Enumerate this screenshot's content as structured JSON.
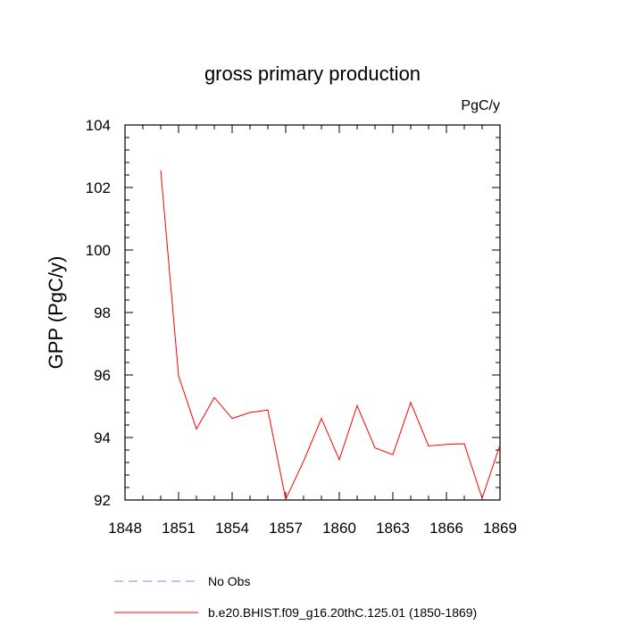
{
  "chart_data": {
    "type": "line",
    "title": "gross primary production",
    "units_label": "PgC/y",
    "ylabel": "GPP  (PgC/y)",
    "xlabel": "",
    "xlim": [
      1848,
      1869
    ],
    "ylim": [
      92,
      104
    ],
    "x_ticks": [
      1848,
      1851,
      1854,
      1857,
      1860,
      1863,
      1866,
      1869
    ],
    "y_ticks": [
      92,
      94,
      96,
      98,
      100,
      102,
      104
    ],
    "grid": false,
    "legend_position": "bottom",
    "series": [
      {
        "name": "No Obs",
        "color": "#8080ff",
        "dash": "dashed",
        "x": [],
        "values": []
      },
      {
        "name": "b.e20.BHIST.f09_g16.20thC.125.01 (1850-1869)",
        "color": "#ff0000",
        "dash": "solid",
        "x": [
          1850,
          1851,
          1852,
          1853,
          1854,
          1855,
          1856,
          1857,
          1858,
          1859,
          1860,
          1861,
          1862,
          1863,
          1864,
          1865,
          1866,
          1867,
          1868,
          1869
        ],
        "values": [
          102.55,
          95.97,
          94.27,
          95.28,
          94.61,
          94.8,
          94.88,
          92.02,
          93.24,
          94.61,
          93.29,
          95.02,
          93.67,
          93.45,
          95.12,
          93.73,
          93.78,
          93.8,
          92.06,
          93.76
        ]
      }
    ]
  }
}
